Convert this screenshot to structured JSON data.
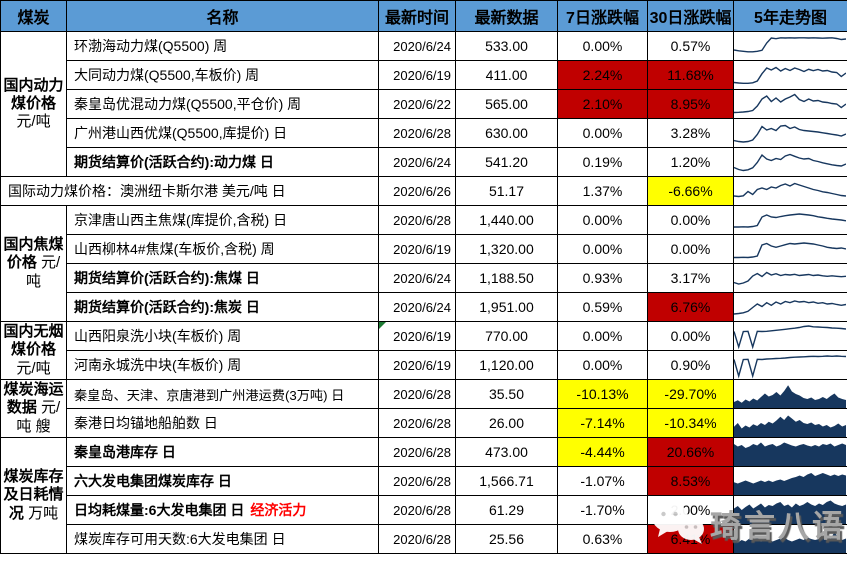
{
  "palette": {
    "header_bg": "#5B9BD5",
    "cell_red": "#C00000",
    "cell_yellow": "#FFFF00",
    "spark_navy": "#17375E",
    "suffix_red": "#FF0000",
    "marker_green": "#1E7B34",
    "watermark_gray": "#A6A6A6"
  },
  "watermark": {
    "text": "琦言八语"
  },
  "table": {
    "columns": [
      "煤炭",
      "名称",
      "最新时间",
      "最新数据",
      "7日涨跌幅",
      "30日涨跌幅",
      "5年走势图"
    ],
    "rows": [
      {
        "cat": {
          "title": "国内动力煤价格",
          "unit": "元/吨",
          "rowspan": 5
        },
        "name": "环渤海动力煤(Q5500) 周",
        "date": "2020/6/24",
        "value": "533.00",
        "chg7": {
          "text": "0.00%",
          "bg": null
        },
        "chg30": {
          "text": "0.57%",
          "bg": null
        },
        "spark": {
          "type": "line",
          "points": [
            0.34,
            0.31,
            0.29,
            0.27,
            0.27,
            0.29,
            0.33,
            0.62,
            0.82,
            0.79,
            0.83,
            0.82,
            0.83,
            0.82,
            0.83,
            0.83,
            0.82,
            0.83,
            0.82,
            0.81,
            0.82,
            0.83,
            0.8,
            0.76,
            0.78
          ]
        }
      },
      {
        "name": "大同动力煤(Q5500,车板价) 周",
        "date": "2020/6/19",
        "value": "411.00",
        "chg7": {
          "text": "2.24%",
          "bg": "red"
        },
        "chg30": {
          "text": "11.68%",
          "bg": "red"
        },
        "spark": {
          "type": "line",
          "points": [
            0.2,
            0.18,
            0.17,
            0.17,
            0.19,
            0.26,
            0.55,
            0.78,
            0.7,
            0.8,
            0.66,
            0.76,
            0.68,
            0.78,
            0.72,
            0.64,
            0.73,
            0.67,
            0.72,
            0.66,
            0.68,
            0.62,
            0.6,
            0.44,
            0.58
          ]
        }
      },
      {
        "name": "秦皇岛优混动力煤(Q5500,平仓价) 周",
        "date": "2020/6/22",
        "value": "565.00",
        "chg7": {
          "text": "2.10%",
          "bg": "red"
        },
        "chg30": {
          "text": "8.95%",
          "bg": "red"
        },
        "spark": {
          "type": "line",
          "points": [
            0.16,
            0.17,
            0.18,
            0.2,
            0.24,
            0.42,
            0.7,
            0.82,
            0.6,
            0.74,
            0.58,
            0.7,
            0.78,
            0.88,
            0.68,
            0.6,
            0.7,
            0.62,
            0.64,
            0.58,
            0.56,
            0.52,
            0.5,
            0.36,
            0.5
          ]
        }
      },
      {
        "name": "广州港山西优煤(Q5500,库提价) 日",
        "date": "2020/6/28",
        "value": "630.00",
        "chg7": {
          "text": "0.00%",
          "bg": null
        },
        "chg30": {
          "text": "3.28%",
          "bg": null
        },
        "spark": {
          "type": "line",
          "points": [
            0.2,
            0.16,
            0.14,
            0.16,
            0.22,
            0.44,
            0.76,
            0.62,
            0.68,
            0.6,
            0.78,
            0.8,
            0.68,
            0.74,
            0.64,
            0.6,
            0.58,
            0.56,
            0.54,
            0.51,
            0.48,
            0.45,
            0.42,
            0.38,
            0.46
          ]
        }
      },
      {
        "name": "期货结算价(活跃合约):动力煤 日",
        "bold": true,
        "date": "2020/6/24",
        "value": "541.20",
        "chg7": {
          "text": "0.19%",
          "bg": null
        },
        "chg30": {
          "text": "1.20%",
          "bg": null
        },
        "spark": {
          "type": "line",
          "points": [
            0.28,
            0.2,
            0.16,
            0.19,
            0.27,
            0.48,
            0.78,
            0.62,
            0.56,
            0.64,
            0.6,
            0.74,
            0.8,
            0.73,
            0.66,
            0.62,
            0.64,
            0.56,
            0.52,
            0.47,
            0.43,
            0.39,
            0.36,
            0.34,
            0.42
          ]
        }
      },
      {
        "merged": true,
        "name": "国际动力煤价格：澳洲纽卡斯尔港 美元/吨 日",
        "date": "2020/6/26",
        "value": "51.17",
        "chg7": {
          "text": "1.37%",
          "bg": null
        },
        "chg30": {
          "text": "-6.66%",
          "bg": "yellow"
        },
        "spark": {
          "type": "line",
          "points": [
            0.3,
            0.28,
            0.31,
            0.48,
            0.36,
            0.56,
            0.62,
            0.56,
            0.66,
            0.62,
            0.72,
            0.78,
            0.7,
            0.8,
            0.74,
            0.68,
            0.62,
            0.56,
            0.52,
            0.47,
            0.44,
            0.4,
            0.36,
            0.32,
            0.3
          ]
        }
      },
      {
        "cat": {
          "title": "国内焦煤价格",
          "unit": "元/吨",
          "rowspan": 4
        },
        "name": "京津唐山西主焦煤(库提价,含税) 日",
        "date": "2020/6/28",
        "value": "1,440.00",
        "chg7": {
          "text": "0.00%",
          "bg": null
        },
        "chg30": {
          "text": "0.00%",
          "bg": null
        },
        "spark": {
          "type": "line",
          "points": [
            0.22,
            0.22,
            0.23,
            0.22,
            0.24,
            0.28,
            0.62,
            0.7,
            0.62,
            0.6,
            0.64,
            0.67,
            0.7,
            0.72,
            0.74,
            0.72,
            0.7,
            0.67,
            0.63,
            0.6,
            0.57,
            0.54,
            0.52,
            0.5,
            0.47
          ]
        }
      },
      {
        "name": "山西柳林4#焦煤(车板价,含税) 周",
        "date": "2020/6/19",
        "value": "1,320.00",
        "chg7": {
          "text": "0.00%",
          "bg": null
        },
        "chg30": {
          "text": "0.00%",
          "bg": null
        },
        "spark": {
          "type": "line",
          "points": [
            0.16,
            0.16,
            0.17,
            0.16,
            0.18,
            0.22,
            0.66,
            0.72,
            0.62,
            0.57,
            0.62,
            0.67,
            0.72,
            0.7,
            0.72,
            0.74,
            0.72,
            0.7,
            0.66,
            0.62,
            0.57,
            0.54,
            0.52,
            0.54,
            0.5
          ]
        }
      },
      {
        "name": "期货结算价(活跃合约):焦煤 日",
        "bold": true,
        "date": "2020/6/24",
        "value": "1,188.50",
        "chg7": {
          "text": "0.93%",
          "bg": null
        },
        "chg30": {
          "text": "3.17%",
          "bg": null
        },
        "spark": {
          "type": "line",
          "points": [
            0.32,
            0.26,
            0.3,
            0.38,
            0.58,
            0.68,
            0.56,
            0.72,
            0.62,
            0.67,
            0.6,
            0.64,
            0.62,
            0.65,
            0.6,
            0.62,
            0.64,
            0.6,
            0.62,
            0.59,
            0.57,
            0.59,
            0.57,
            0.55,
            0.57
          ]
        }
      },
      {
        "name": "期货结算价(活跃合约):焦炭 日",
        "bold": true,
        "date": "2020/6/24",
        "value": "1,951.00",
        "chg7": {
          "text": "0.59%",
          "bg": null
        },
        "chg30": {
          "text": "6.76%",
          "bg": "red"
        },
        "spark": {
          "type": "line",
          "points": [
            0.22,
            0.24,
            0.27,
            0.33,
            0.48,
            0.62,
            0.52,
            0.67,
            0.57,
            0.7,
            0.62,
            0.72,
            0.67,
            0.74,
            0.7,
            0.72,
            0.67,
            0.7,
            0.65,
            0.67,
            0.62,
            0.64,
            0.6,
            0.57,
            0.6
          ]
        }
      },
      {
        "cat": {
          "title": "国内无烟煤价格",
          "unit": "元/吨",
          "rowspan": 2
        },
        "name": "山西阳泉洗小块(车板价) 周",
        "date": "2020/6/19",
        "value": "770.00",
        "marker": true,
        "chg7": {
          "text": "0.00%",
          "bg": null
        },
        "chg30": {
          "text": "0.00%",
          "bg": null
        },
        "spark": {
          "type": "line",
          "points": [
            0.68,
            0.06,
            0.68,
            0.69,
            0.06,
            0.69,
            0.68,
            0.69,
            0.71,
            0.73,
            0.75,
            0.77,
            0.79,
            0.81,
            0.84,
            0.88,
            0.9,
            0.87,
            0.86,
            0.85,
            0.84,
            0.82,
            0.81,
            0.8,
            0.78
          ]
        }
      },
      {
        "name": "河南永城洗中块(车板价) 周",
        "date": "2020/6/19",
        "value": "1,120.00",
        "chg7": {
          "text": "0.00%",
          "bg": null
        },
        "chg30": {
          "text": "0.90%",
          "bg": null
        },
        "spark": {
          "type": "line",
          "points": [
            0.72,
            0.06,
            0.72,
            0.73,
            0.06,
            0.73,
            0.72,
            0.74,
            0.75,
            0.76,
            0.77,
            0.78,
            0.8,
            0.81,
            0.82,
            0.83,
            0.84,
            0.85,
            0.84,
            0.85,
            0.86,
            0.85,
            0.86,
            0.85,
            0.84
          ]
        }
      },
      {
        "cat": {
          "title": "煤炭海运数据",
          "unit": "元/吨 艘",
          "rowspan": 2
        },
        "name": "秦皇岛、天津、京唐港到广州港运费(3万吨) 日",
        "compact": true,
        "date": "2020/6/28",
        "value": "35.50",
        "chg7": {
          "text": "-10.13%",
          "bg": "yellow"
        },
        "chg30": {
          "text": "-29.70%",
          "bg": "yellow"
        },
        "spark": {
          "type": "area",
          "points": [
            0.18,
            0.25,
            0.15,
            0.28,
            0.2,
            0.32,
            0.24,
            0.38,
            0.52,
            0.4,
            0.46,
            0.58,
            0.44,
            0.62,
            0.85,
            0.6,
            0.5,
            0.44,
            0.34,
            0.3,
            0.36,
            0.26,
            0.3,
            0.38,
            0.3,
            0.42,
            0.52,
            0.36,
            0.3,
            0.26
          ]
        }
      },
      {
        "name": "秦港日均锚地船舶数 日",
        "date": "2020/6/28",
        "value": "26.00",
        "chg7": {
          "text": "-7.14%",
          "bg": "yellow"
        },
        "chg30": {
          "text": "-10.34%",
          "bg": "yellow"
        },
        "spark": {
          "type": "area",
          "points": [
            0.35,
            0.5,
            0.28,
            0.4,
            0.32,
            0.45,
            0.38,
            0.5,
            0.42,
            0.55,
            0.48,
            0.6,
            0.75,
            0.62,
            0.8,
            0.68,
            0.55,
            0.62,
            0.5,
            0.46,
            0.52,
            0.42,
            0.46,
            0.36,
            0.42,
            0.32,
            0.38,
            0.48,
            0.36,
            0.42
          ]
        }
      },
      {
        "cat": {
          "title": "煤炭库存及日耗情况",
          "unit": "万吨",
          "rowspan": 4
        },
        "name": "秦皇岛港库存 日",
        "bold": true,
        "date": "2020/6/28",
        "value": "473.00",
        "chg7": {
          "text": "-4.44%",
          "bg": "yellow"
        },
        "chg30": {
          "text": "20.66%",
          "bg": "red"
        },
        "spark": {
          "type": "area",
          "points": [
            0.82,
            0.72,
            0.78,
            0.66,
            0.72,
            0.82,
            0.76,
            0.88,
            0.72,
            0.78,
            0.82,
            0.72,
            0.78,
            0.88,
            0.82,
            0.76,
            0.72,
            0.78,
            0.82,
            0.76,
            0.72,
            0.78,
            0.72,
            0.82,
            0.78,
            0.84,
            0.72,
            0.78,
            0.84,
            0.78
          ]
        }
      },
      {
        "name": "六大发电集团煤炭库存 日",
        "bold": true,
        "date": "2020/6/28",
        "value": "1,566.71",
        "chg7": {
          "text": "-1.07%",
          "bg": null
        },
        "chg30": {
          "text": "8.53%",
          "bg": "red"
        },
        "spark": {
          "type": "area",
          "points": [
            0.45,
            0.4,
            0.46,
            0.52,
            0.46,
            0.4,
            0.46,
            0.52,
            0.46,
            0.52,
            0.46,
            0.52,
            0.56,
            0.5,
            0.56,
            0.62,
            0.66,
            0.72,
            0.66,
            0.76,
            0.82,
            0.7,
            0.76,
            0.82,
            0.76,
            0.7,
            0.76,
            0.7,
            0.76,
            0.72
          ]
        }
      },
      {
        "name": "日均耗煤量:6大发电集团 日",
        "bold": true,
        "suffix": "经济活力",
        "date": "2020/6/28",
        "value": "61.29",
        "chg7": {
          "text": "-1.70%",
          "bg": null
        },
        "chg30": {
          "text": "2.00%",
          "bg": null
        },
        "spark": {
          "type": "area",
          "points": [
            0.56,
            0.66,
            0.5,
            0.62,
            0.72,
            0.56,
            0.66,
            0.76,
            0.6,
            0.7,
            0.66,
            0.76,
            0.82,
            0.66,
            0.72,
            0.6,
            0.76,
            0.66,
            0.72,
            0.82,
            0.72,
            0.66,
            0.76,
            0.7,
            0.82,
            0.88,
            0.76,
            0.7,
            0.66,
            0.72
          ]
        }
      },
      {
        "name": "煤炭库存可用天数:6大发电集团 日",
        "date": "2020/6/28",
        "value": "25.56",
        "chg7": {
          "text": "0.63%",
          "bg": null
        },
        "chg30": {
          "text": "6.41%",
          "bg": "red"
        },
        "spark": {
          "type": "area",
          "points": [
            0.52,
            0.36,
            0.46,
            0.4,
            0.52,
            0.46,
            0.56,
            0.4,
            0.5,
            0.46,
            0.4,
            0.46,
            0.52,
            0.56,
            0.46,
            0.4,
            0.46,
            0.52,
            0.46,
            0.56,
            0.5,
            0.46,
            0.5,
            0.56,
            0.62,
            0.5,
            0.78,
            0.56,
            0.46,
            0.52
          ]
        }
      }
    ]
  }
}
